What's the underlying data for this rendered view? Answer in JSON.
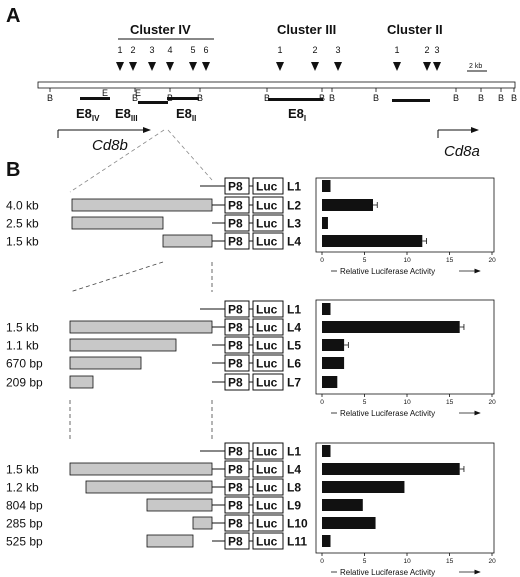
{
  "panel_a": {
    "letter": "A",
    "clusters": [
      {
        "name": "Cluster IV",
        "sites": [
          "1",
          "2",
          "3",
          "4",
          "5",
          "6"
        ]
      },
      {
        "name": "Cluster III",
        "sites": [
          "1",
          "2",
          "3"
        ]
      },
      {
        "name": "Cluster II",
        "sites": [
          "1",
          "2",
          "3"
        ]
      }
    ],
    "scale_bar": "2 kb",
    "restriction_site": "B",
    "ecori_site": "E",
    "enhancers": [
      {
        "base": "E8",
        "sub": "IV"
      },
      {
        "base": "E8",
        "sub": "III"
      },
      {
        "base": "E8",
        "sub": "II"
      },
      {
        "base": "E8",
        "sub": "I"
      }
    ],
    "genes": [
      "Cd8b",
      "Cd8a"
    ]
  },
  "panel_b": {
    "letter": "B",
    "promoter_label": "P8",
    "reporter_label": "Luc",
    "axis_title": "Relative Luciferase Activity",
    "groups": [
      {
        "rows": [
          {
            "fragment": "",
            "construct": "L1",
            "value": 1.0,
            "error": 0
          },
          {
            "fragment": "4.0 kb",
            "construct": "L2",
            "value": 6.0,
            "error": 0.5
          },
          {
            "fragment": "2.5 kb",
            "construct": "L3",
            "value": 0.7,
            "error": 0
          },
          {
            "fragment": "1.5 kb",
            "construct": "L4",
            "value": 11.8,
            "error": 0.5
          }
        ]
      },
      {
        "rows": [
          {
            "fragment": "",
            "construct": "L1",
            "value": 1.0,
            "error": 0
          },
          {
            "fragment": "1.5 kb",
            "construct": "L4",
            "value": 16.2,
            "error": 0.5
          },
          {
            "fragment": "1.1 kb",
            "construct": "L5",
            "value": 2.6,
            "error": 0.5
          },
          {
            "fragment": "670 bp",
            "construct": "L6",
            "value": 2.6,
            "error": 0
          },
          {
            "fragment": "209 bp",
            "construct": "L7",
            "value": 1.8,
            "error": 0
          }
        ]
      },
      {
        "rows": [
          {
            "fragment": "",
            "construct": "L1",
            "value": 1.0,
            "error": 0
          },
          {
            "fragment": "1.5 kb",
            "construct": "L4",
            "value": 16.2,
            "error": 0.5
          },
          {
            "fragment": "1.2 kb",
            "construct": "L8",
            "value": 9.7,
            "error": 0
          },
          {
            "fragment": "804 bp",
            "construct": "L9",
            "value": 4.8,
            "error": 0
          },
          {
            "fragment": "285 bp",
            "construct": "L10",
            "value": 6.3,
            "error": 0
          },
          {
            "fragment": "525 bp",
            "construct": "L11",
            "value": 1.0,
            "error": 0
          }
        ]
      }
    ]
  },
  "chart_data": {
    "type": "bar",
    "orientation": "horizontal",
    "xlabel": "Relative Luciferase Activity",
    "xlim": [
      0,
      20
    ],
    "xticks": [
      0,
      5,
      10,
      15,
      20
    ],
    "panels": [
      {
        "categories": [
          "L1",
          "L2",
          "L3",
          "L4"
        ],
        "values": [
          1.0,
          6.0,
          0.7,
          11.8
        ],
        "errors": [
          0,
          0.5,
          0,
          0.5
        ]
      },
      {
        "categories": [
          "L1",
          "L4",
          "L5",
          "L6",
          "L7"
        ],
        "values": [
          1.0,
          16.2,
          2.6,
          2.6,
          1.8
        ],
        "errors": [
          0,
          0.5,
          0.5,
          0,
          0
        ]
      },
      {
        "categories": [
          "L1",
          "L4",
          "L8",
          "L9",
          "L10",
          "L11"
        ],
        "values": [
          1.0,
          16.2,
          9.7,
          4.8,
          6.3,
          1.0
        ],
        "errors": [
          0,
          0.5,
          0,
          0,
          0,
          0
        ]
      }
    ]
  }
}
